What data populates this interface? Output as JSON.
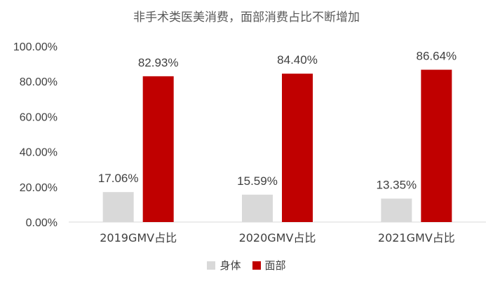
{
  "chart_data": {
    "type": "bar",
    "title": "非手术类医美消费，面部消费占比不断增加",
    "categories": [
      "2019GMV占比",
      "2020GMV占比",
      "2021GMV占比"
    ],
    "series": [
      {
        "name": "身体",
        "values": [
          17.06,
          15.59,
          13.35
        ],
        "labels": [
          "17.06%",
          "15.59%",
          "13.35%"
        ],
        "color": "#d9d9d9"
      },
      {
        "name": "面部",
        "values": [
          82.93,
          84.4,
          86.64
        ],
        "labels": [
          "82.93%",
          "84.40%",
          "86.64%"
        ],
        "color": "#c00000"
      }
    ],
    "ylim": [
      0,
      100
    ],
    "yticks": [
      "0.00%",
      "20.00%",
      "40.00%",
      "60.00%",
      "80.00%",
      "100.00%"
    ],
    "ytick_values": [
      0,
      20,
      40,
      60,
      80,
      100
    ],
    "xlabel": "",
    "ylabel": "",
    "grid": false,
    "legend_position": "bottom"
  }
}
